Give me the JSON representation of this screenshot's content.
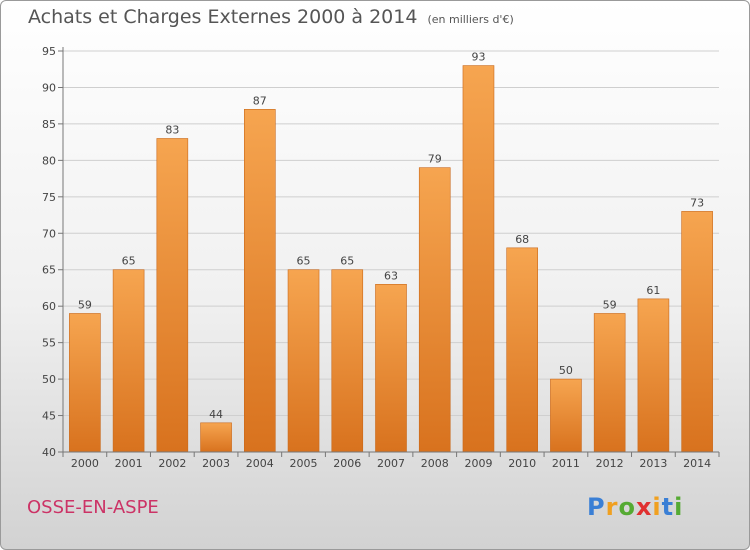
{
  "title": "Achats et Charges Externes 2000 à 2014",
  "subtitle": "(en milliers d'€)",
  "commune": "OSSE-EN-ASPE",
  "logo": {
    "letters": [
      "P",
      "r",
      "o",
      "x",
      "i",
      "t",
      "i"
    ],
    "colors": [
      "#3a7fd5",
      "#f0a020",
      "#55aa33",
      "#e03030",
      "#f0a020",
      "#3a7fd5",
      "#55aa33"
    ]
  },
  "chart_data": {
    "type": "bar",
    "categories": [
      "2000",
      "2001",
      "2002",
      "2003",
      "2004",
      "2005",
      "2006",
      "2007",
      "2008",
      "2009",
      "2010",
      "2011",
      "2012",
      "2013",
      "2014"
    ],
    "values": [
      59,
      65,
      83,
      44,
      87,
      65,
      65,
      63,
      79,
      93,
      68,
      50,
      59,
      61,
      73
    ],
    "ylim": [
      40,
      95
    ],
    "yticks": [
      40,
      45,
      50,
      55,
      60,
      65,
      70,
      75,
      80,
      85,
      90,
      95
    ],
    "grid": true,
    "bar_color": "#f29b45"
  }
}
